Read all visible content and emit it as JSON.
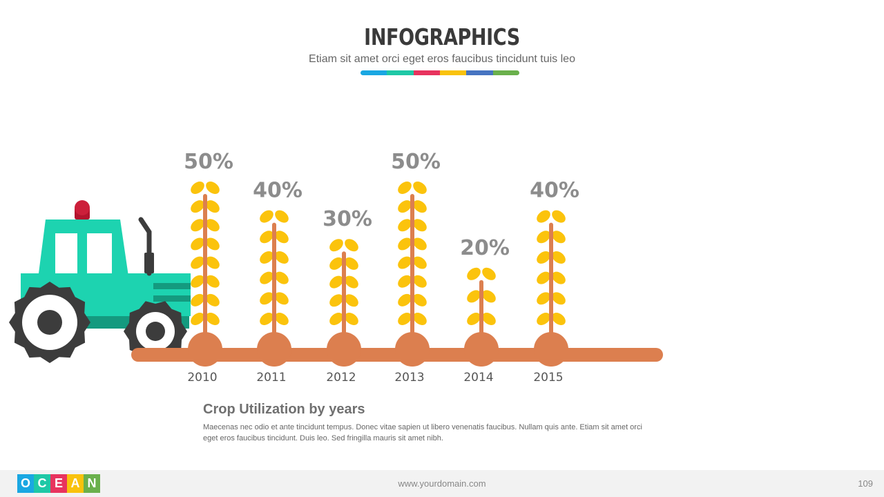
{
  "header": {
    "title": "INFOGRAPHICS",
    "subtitle": "Etiam sit amet orci eget eros faucibus tincidunt tuis leo",
    "color_strip": [
      "#1aa7e2",
      "#1fc8a6",
      "#e8335e",
      "#f9c20d",
      "#4674c1",
      "#6ab04c"
    ]
  },
  "chart_data": {
    "type": "bar",
    "title": "Crop Utilization by years",
    "categories": [
      "2010",
      "2011",
      "2012",
      "2013",
      "2014",
      "2015"
    ],
    "values": [
      50,
      40,
      30,
      50,
      20,
      40
    ],
    "value_labels": [
      "50%",
      "40%",
      "30%",
      "50%",
      "20%",
      "40%"
    ],
    "unit": "%",
    "ylim": [
      0,
      50
    ],
    "mark": "wheat-stalk",
    "colors": {
      "grain": "#fbc30c",
      "stem": "#dc7f4f",
      "ground": "#dc7f4f",
      "label": "#8c8c8c"
    }
  },
  "tractor": {
    "body": "#1dd3b0",
    "dark": "#149a7f",
    "light": "#cc1f3a",
    "tire": "#3c3c3c"
  },
  "description": {
    "title": "Crop Utilization by years",
    "body": "Maecenas nec odio et  ante tincidunt tempus.  Donec vitae sapien ut libero venenatis faucibus. Nullam quis ante. Etiam sit amet orci eget eros faucibus tincidunt. Duis leo. Sed fringilla mauris sit amet nibh."
  },
  "footer": {
    "logo_letters": [
      "O",
      "C",
      "E",
      "A",
      "N"
    ],
    "logo_colors": [
      "#1aa7e2",
      "#1fc8a6",
      "#e8335e",
      "#f9c20d",
      "#6ab04c"
    ],
    "url": "www.yourdomain.com",
    "page_number": "109"
  }
}
